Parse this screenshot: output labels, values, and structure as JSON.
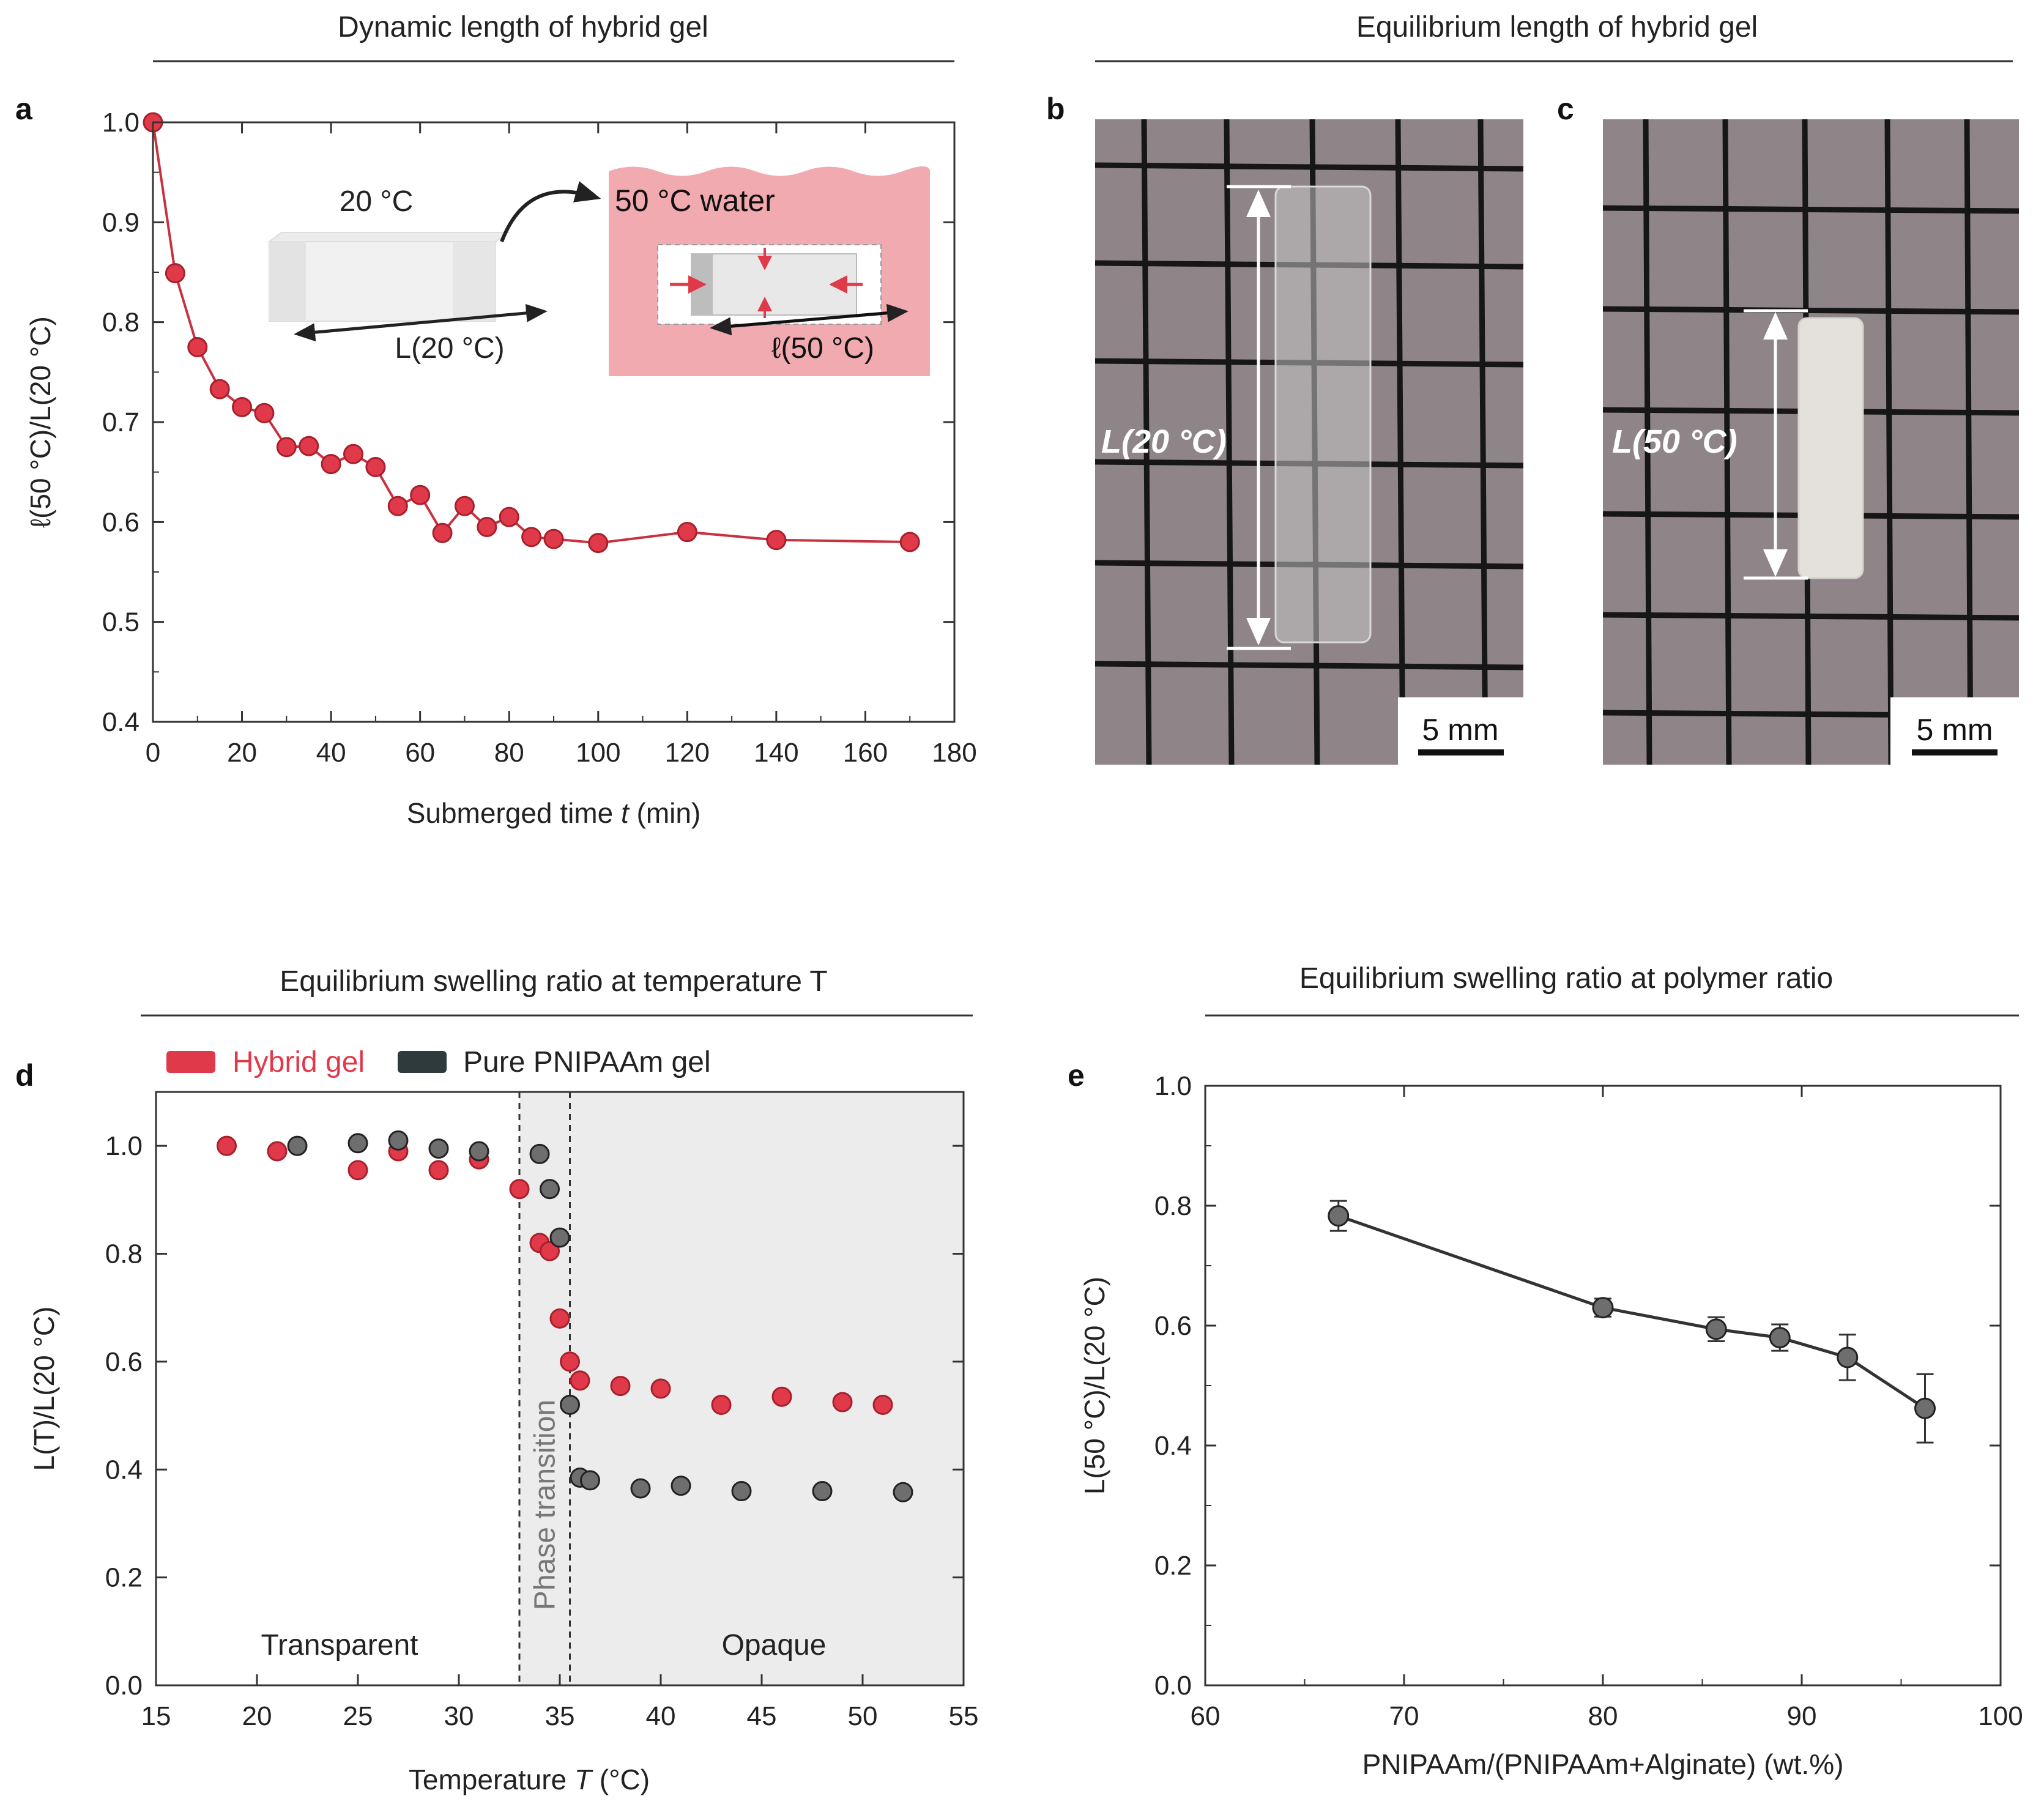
{
  "sections": {
    "dynamic_title": "Dynamic length of hybrid gel",
    "equilibrium_title": "Equilibrium length of hybrid gel",
    "temperature_title": "Equilibrium swelling ratio at temperature T",
    "polymer_title": "Equilibrium swelling ratio at polymer ratio"
  },
  "panels": {
    "a": "a",
    "b": "b",
    "c": "c",
    "d": "d",
    "e": "e"
  },
  "inset_a": {
    "cold_label": "20 °C",
    "hot_label": "50 °C water",
    "cold_length": "L(20 °C)",
    "hot_length": "ℓ(50 °C)"
  },
  "photo_b": {
    "label": "L(20 °C)",
    "scale_bar": "5 mm"
  },
  "photo_c": {
    "label": "L(50 °C)",
    "scale_bar": "5 mm"
  },
  "panel_d_labels": {
    "left_region": "Transparent",
    "middle_region": "Phase transition",
    "right_region": "Opaque"
  },
  "colors": {
    "hybrid": "#e03a4a",
    "pure": "#6e6e6e",
    "pure_legend": "#2f3a3d",
    "line_a": "#c8323e",
    "line_e": "#333333",
    "inset_bg": "#f0aab0",
    "opaque_bg": "#ececec",
    "photo_bg": "#8f8588"
  },
  "chart_data": [
    {
      "id": "a",
      "type": "line",
      "title": "Dynamic length of hybrid gel",
      "xlabel_pre": "Submerged time ",
      "xlabel_var": "t",
      "xlabel_post": " (min)",
      "ylabel": "ℓ(50 °C)/L(20 °C)",
      "xlim": [
        0,
        180
      ],
      "ylim": [
        0.4,
        1.0
      ],
      "xticks": [
        "0",
        "20",
        "40",
        "60",
        "80",
        "100",
        "120",
        "140",
        "160",
        "180"
      ],
      "yticks": [
        "0.4",
        "0.5",
        "0.6",
        "0.7",
        "0.8",
        "0.9",
        "1.0"
      ],
      "x": [
        0,
        5,
        10,
        15,
        20,
        25,
        30,
        35,
        40,
        45,
        50,
        55,
        60,
        65,
        70,
        75,
        80,
        85,
        90,
        100,
        120,
        140,
        170
      ],
      "y": [
        1.0,
        0.849,
        0.775,
        0.733,
        0.715,
        0.709,
        0.675,
        0.676,
        0.658,
        0.668,
        0.655,
        0.616,
        0.627,
        0.589,
        0.616,
        0.595,
        0.605,
        0.585,
        0.583,
        0.579,
        0.59,
        0.582,
        0.58
      ]
    },
    {
      "id": "d",
      "type": "scatter",
      "title": "Equilibrium swelling ratio at temperature T",
      "xlabel_pre": "Temperature ",
      "xlabel_var": "T",
      "xlabel_post": " (°C)",
      "ylabel": "L(T)/L(20 °C)",
      "xlim": [
        15,
        55
      ],
      "ylim": [
        0,
        1.1
      ],
      "xticks": [
        "15",
        "20",
        "25",
        "30",
        "35",
        "40",
        "45",
        "50",
        "55"
      ],
      "yticks": [
        "0.0",
        "0.2",
        "0.4",
        "0.6",
        "0.8",
        "1.0"
      ],
      "phase_transition_range": [
        33,
        35.5
      ],
      "series": [
        {
          "name": "Hybrid gel",
          "x": [
            18.5,
            21,
            25,
            27,
            29,
            31,
            33,
            34,
            34.5,
            35,
            35.5,
            36,
            38,
            40,
            43,
            46,
            49,
            51
          ],
          "y": [
            1.0,
            0.99,
            0.955,
            0.99,
            0.955,
            0.975,
            0.92,
            0.82,
            0.805,
            0.68,
            0.6,
            0.565,
            0.555,
            0.55,
            0.52,
            0.535,
            0.525,
            0.52
          ]
        },
        {
          "name": "Pure PNIPAAm gel",
          "x": [
            22,
            25,
            27,
            29,
            31,
            34,
            34.5,
            35,
            35.5,
            36,
            36.5,
            39,
            41,
            44,
            48,
            52
          ],
          "y": [
            1.0,
            1.005,
            1.01,
            0.995,
            0.99,
            0.985,
            0.92,
            0.83,
            0.52,
            0.385,
            0.38,
            0.365,
            0.37,
            0.36,
            0.36,
            0.358
          ]
        }
      ]
    },
    {
      "id": "e",
      "type": "line",
      "title": "Equilibrium swelling ratio at polymer ratio",
      "xlabel": "PNIPAAm/(PNIPAAm+Alginate) (wt.%)",
      "ylabel": "L(50 °C)/L(20 °C)",
      "xlim": [
        60,
        100
      ],
      "ylim": [
        0,
        1.0
      ],
      "xticks": [
        "60",
        "70",
        "80",
        "90",
        "100"
      ],
      "yticks": [
        "0.0",
        "0.2",
        "0.4",
        "0.6",
        "0.8",
        "1.0"
      ],
      "x": [
        66.7,
        80,
        85.7,
        88.9,
        92.3,
        96.2
      ],
      "y": [
        0.783,
        0.63,
        0.594,
        0.58,
        0.547,
        0.462
      ],
      "err": [
        0.025,
        0.015,
        0.02,
        0.022,
        0.038,
        0.057
      ]
    }
  ]
}
